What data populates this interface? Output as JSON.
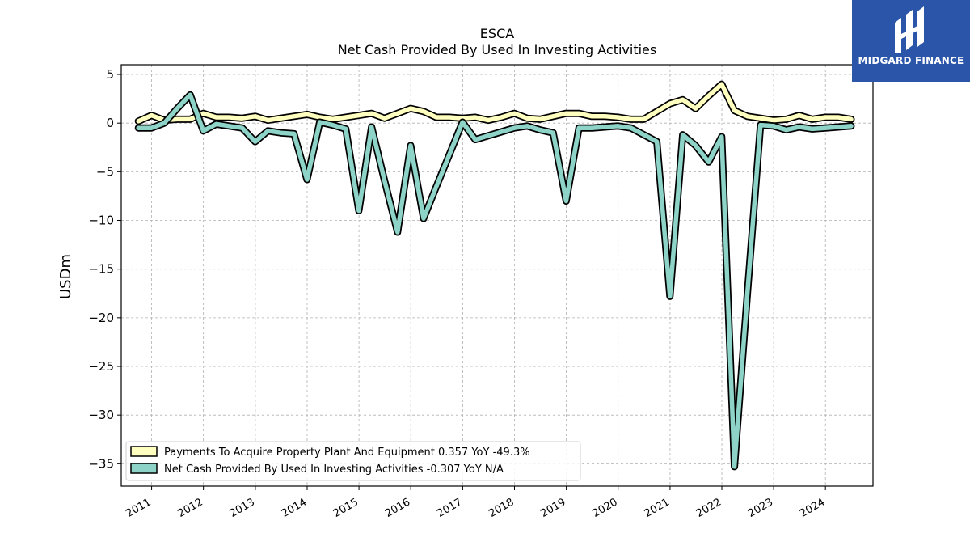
{
  "logo": {
    "text": "MIDGARD FINANCE",
    "icon": "midgard-logo-icon",
    "background": "#2b55a9"
  },
  "chart_data": {
    "type": "line",
    "title": "ESCA",
    "subtitle": "Net Cash Provided By Used In Investing Activities",
    "ylabel": "USDm",
    "xlabel": "",
    "ylim": [
      -37.3,
      6
    ],
    "xlim": [
      "2010-06-01",
      "2024-12-01"
    ],
    "yticks": [
      5,
      0,
      -5,
      -10,
      -15,
      -20,
      -25,
      -30,
      -35
    ],
    "xticks": [
      {
        "date": "2011-01-01",
        "label": "2011"
      },
      {
        "date": "2012-01-01",
        "label": "2012"
      },
      {
        "date": "2013-01-01",
        "label": "2013"
      },
      {
        "date": "2014-01-01",
        "label": "2014"
      },
      {
        "date": "2015-01-01",
        "label": "2015"
      },
      {
        "date": "2016-01-01",
        "label": "2016"
      },
      {
        "date": "2017-01-01",
        "label": "2017"
      },
      {
        "date": "2018-01-01",
        "label": "2018"
      },
      {
        "date": "2019-01-01",
        "label": "2019"
      },
      {
        "date": "2020-01-01",
        "label": "2020"
      },
      {
        "date": "2021-01-01",
        "label": "2021"
      },
      {
        "date": "2022-01-01",
        "label": "2022"
      },
      {
        "date": "2023-01-01",
        "label": "2023"
      },
      {
        "date": "2024-01-01",
        "label": "2024"
      }
    ],
    "grid": true,
    "legend_position": "lower-left",
    "series": [
      {
        "name": "Payments To Acquire Property Plant And Equipment",
        "legend_label": "Payments To Acquire Property Plant And Equipment  0.357 YoY -49.3%",
        "color": "#ffffbf",
        "points": [
          [
            "2010-09-30",
            0.2
          ],
          [
            "2010-12-31",
            0.8
          ],
          [
            "2011-03-31",
            0.3
          ],
          [
            "2011-06-30",
            0.4
          ],
          [
            "2011-09-30",
            0.4
          ],
          [
            "2011-12-31",
            1.0
          ],
          [
            "2012-03-31",
            0.6
          ],
          [
            "2012-06-30",
            0.6
          ],
          [
            "2012-09-30",
            0.5
          ],
          [
            "2012-12-31",
            0.7
          ],
          [
            "2013-03-31",
            0.3
          ],
          [
            "2013-06-30",
            0.5
          ],
          [
            "2013-09-30",
            0.7
          ],
          [
            "2013-12-31",
            0.9
          ],
          [
            "2014-03-31",
            0.6
          ],
          [
            "2014-06-30",
            0.4
          ],
          [
            "2014-09-30",
            0.6
          ],
          [
            "2014-12-31",
            0.8
          ],
          [
            "2015-03-31",
            1.0
          ],
          [
            "2015-06-30",
            0.5
          ],
          [
            "2015-09-30",
            1.0
          ],
          [
            "2015-12-31",
            1.5
          ],
          [
            "2016-03-31",
            1.2
          ],
          [
            "2016-06-30",
            0.6
          ],
          [
            "2016-09-30",
            0.6
          ],
          [
            "2016-12-31",
            0.5
          ],
          [
            "2017-03-31",
            0.6
          ],
          [
            "2017-06-30",
            0.3
          ],
          [
            "2017-09-30",
            0.6
          ],
          [
            "2017-12-31",
            1.0
          ],
          [
            "2018-03-31",
            0.5
          ],
          [
            "2018-06-30",
            0.4
          ],
          [
            "2018-09-30",
            0.7
          ],
          [
            "2018-12-31",
            1.0
          ],
          [
            "2019-03-31",
            1.0
          ],
          [
            "2019-06-30",
            0.7
          ],
          [
            "2019-09-30",
            0.7
          ],
          [
            "2019-12-31",
            0.6
          ],
          [
            "2020-03-31",
            0.4
          ],
          [
            "2020-06-30",
            0.4
          ],
          [
            "2020-09-30",
            1.2
          ],
          [
            "2020-12-31",
            2.0
          ],
          [
            "2021-03-31",
            2.4
          ],
          [
            "2021-06-30",
            1.5
          ],
          [
            "2021-09-30",
            2.8
          ],
          [
            "2021-12-31",
            4.0
          ],
          [
            "2022-03-31",
            1.3
          ],
          [
            "2022-06-30",
            0.7
          ],
          [
            "2022-09-30",
            0.5
          ],
          [
            "2022-12-31",
            0.3
          ],
          [
            "2023-03-31",
            0.4
          ],
          [
            "2023-06-30",
            0.8
          ],
          [
            "2023-09-30",
            0.4
          ],
          [
            "2023-12-31",
            0.6
          ],
          [
            "2024-03-31",
            0.6
          ],
          [
            "2024-06-30",
            0.4
          ]
        ]
      },
      {
        "name": "Net Cash Provided By Used In Investing Activities",
        "legend_label": "Net Cash Provided By Used In Investing Activities  -0.307 YoY N/A",
        "color": "#8dd3c7",
        "points": [
          [
            "2010-09-30",
            -0.5
          ],
          [
            "2010-12-31",
            -0.5
          ],
          [
            "2011-03-31",
            0.0
          ],
          [
            "2011-06-30",
            1.5
          ],
          [
            "2011-09-30",
            2.9
          ],
          [
            "2011-12-31",
            -0.8
          ],
          [
            "2012-03-31",
            -0.1
          ],
          [
            "2012-06-30",
            -0.3
          ],
          [
            "2012-09-30",
            -0.5
          ],
          [
            "2012-12-31",
            -1.9
          ],
          [
            "2013-03-31",
            -0.8
          ],
          [
            "2013-06-30",
            -1.0
          ],
          [
            "2013-09-30",
            -1.1
          ],
          [
            "2013-12-31",
            -5.8
          ],
          [
            "2014-03-31",
            0.1
          ],
          [
            "2014-06-30",
            -0.2
          ],
          [
            "2014-09-30",
            -0.6
          ],
          [
            "2014-12-31",
            -9.0
          ],
          [
            "2015-03-31",
            -0.4
          ],
          [
            "2015-06-30",
            -5.9
          ],
          [
            "2015-09-30",
            -11.2
          ],
          [
            "2015-12-31",
            -2.3
          ],
          [
            "2016-03-31",
            -9.8
          ],
          [
            "2016-06-30",
            -6.5
          ],
          [
            "2016-09-30",
            -3.2
          ],
          [
            "2016-12-31",
            0.1
          ],
          [
            "2017-03-31",
            -1.7
          ],
          [
            "2017-06-30",
            -1.3
          ],
          [
            "2017-09-30",
            -0.9
          ],
          [
            "2017-12-31",
            -0.5
          ],
          [
            "2018-03-31",
            -0.3
          ],
          [
            "2018-06-30",
            -0.7
          ],
          [
            "2018-09-30",
            -1.0
          ],
          [
            "2018-12-31",
            -8.0
          ],
          [
            "2019-03-31",
            -0.5
          ],
          [
            "2019-06-30",
            -0.5
          ],
          [
            "2019-09-30",
            -0.4
          ],
          [
            "2019-12-31",
            -0.3
          ],
          [
            "2020-03-31",
            -0.5
          ],
          [
            "2020-06-30",
            -1.2
          ],
          [
            "2020-09-30",
            -1.9
          ],
          [
            "2020-12-31",
            -17.8
          ],
          [
            "2021-03-31",
            -1.2
          ],
          [
            "2021-06-30",
            -2.3
          ],
          [
            "2021-09-30",
            -4.0
          ],
          [
            "2021-12-31",
            -1.4
          ],
          [
            "2022-03-31",
            -35.3
          ],
          [
            "2022-06-30",
            -17.5
          ],
          [
            "2022-09-30",
            -0.2
          ],
          [
            "2022-12-31",
            -0.3
          ],
          [
            "2023-03-31",
            -0.7
          ],
          [
            "2023-06-30",
            -0.4
          ],
          [
            "2023-09-30",
            -0.6
          ],
          [
            "2023-12-31",
            -0.5
          ],
          [
            "2024-03-31",
            -0.4
          ],
          [
            "2024-06-30",
            -0.3
          ]
        ]
      }
    ]
  }
}
